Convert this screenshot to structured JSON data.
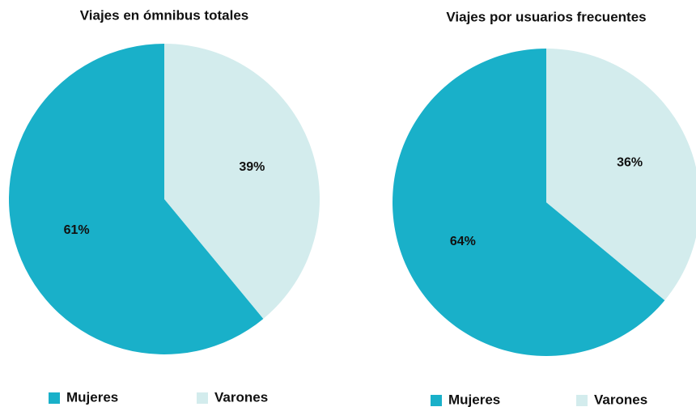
{
  "chart_data": [
    {
      "type": "pie",
      "title": "Viajes en ómnibus totales",
      "categories": [
        "Mujeres",
        "Varones"
      ],
      "values": [
        61,
        39
      ],
      "value_labels": [
        "61%",
        "39%"
      ],
      "colors": [
        "#19b0c9",
        "#d3eced"
      ]
    },
    {
      "type": "pie",
      "title": "Viajes por usuarios frecuentes",
      "categories": [
        "Mujeres",
        "Varones"
      ],
      "values": [
        64,
        36
      ],
      "value_labels": [
        "64%",
        "36%"
      ],
      "colors": [
        "#19b0c9",
        "#d3eced"
      ]
    }
  ]
}
